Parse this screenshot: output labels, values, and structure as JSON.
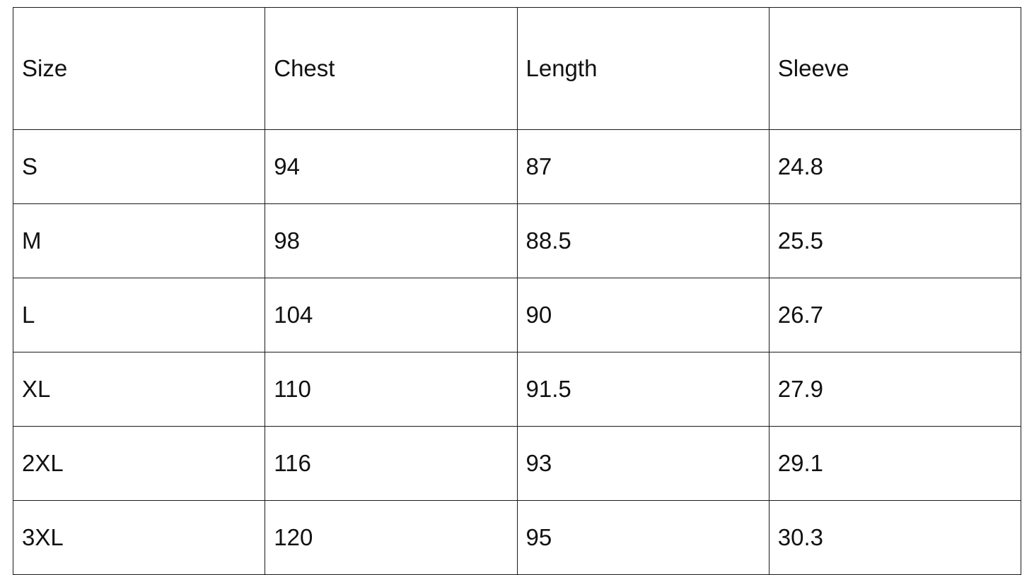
{
  "table": {
    "headers": [
      "Size",
      "Chest",
      "Length",
      "Sleeve"
    ],
    "rows": [
      [
        "S",
        "94",
        "87",
        "24.8"
      ],
      [
        "M",
        "98",
        "88.5",
        "25.5"
      ],
      [
        "L",
        "104",
        "90",
        "26.7"
      ],
      [
        "XL",
        "110",
        "91.5",
        "27.9"
      ],
      [
        "2XL",
        "116",
        "93",
        "29.1"
      ],
      [
        "3XL",
        "120",
        "95",
        "30.3"
      ]
    ]
  }
}
